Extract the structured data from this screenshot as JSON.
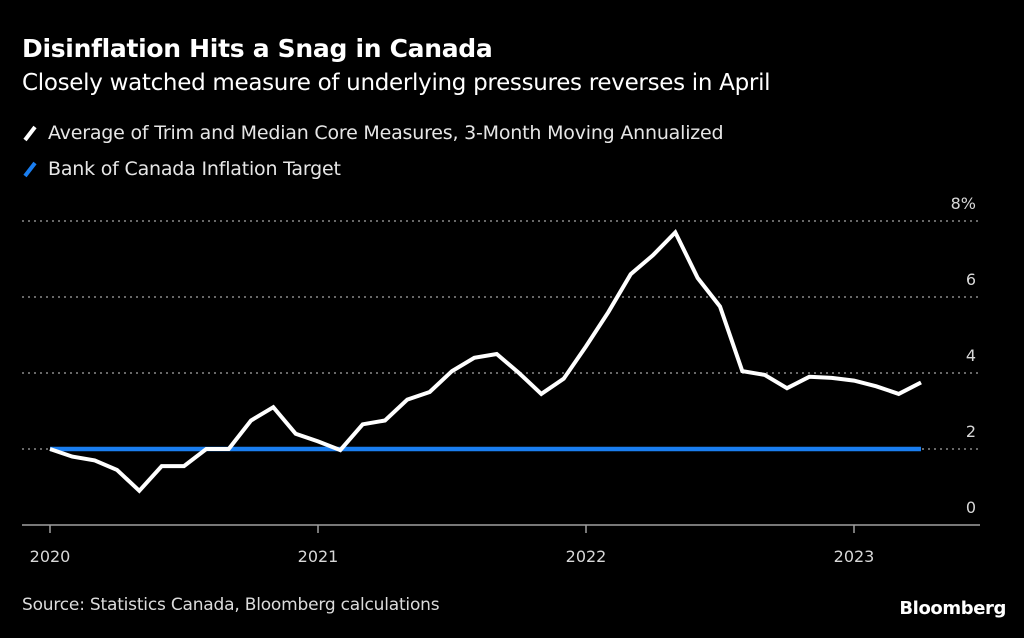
{
  "header": {
    "title": "Disinflation Hits a Snag in Canada",
    "subtitle": "Closely watched measure of underlying pressures reverses in April"
  },
  "legend": [
    {
      "label": "Average of Trim and Median Core Measures, 3-Month Moving Annualized",
      "color": "#ffffff"
    },
    {
      "label": "Bank of Canada Inflation Target",
      "color": "#1a7ef0"
    }
  ],
  "footer": {
    "source": "Source: Statistics Canada, Bloomberg calculations",
    "brand": "Bloomberg"
  },
  "chart_data": {
    "type": "line",
    "title": "Disinflation Hits a Snag in Canada",
    "subtitle": "Closely watched measure of underlying pressures reverses in April",
    "xlabel": "",
    "ylabel": "",
    "ylim": [
      0,
      8
    ],
    "yticks": [
      0,
      2,
      4,
      6,
      8
    ],
    "ytick_labels": [
      "0",
      "2",
      "4",
      "6",
      "8%"
    ],
    "xticks": [
      "2020",
      "2021",
      "2022",
      "2023"
    ],
    "x_range": [
      "2019-12",
      "2023-09"
    ],
    "grid": true,
    "legend_position": "top-left",
    "x": [
      "2020-01",
      "2020-02",
      "2020-03",
      "2020-04",
      "2020-05",
      "2020-06",
      "2020-07",
      "2020-08",
      "2020-09",
      "2020-10",
      "2020-11",
      "2020-12",
      "2021-01",
      "2021-02",
      "2021-03",
      "2021-04",
      "2021-05",
      "2021-06",
      "2021-07",
      "2021-08",
      "2021-09",
      "2021-10",
      "2021-11",
      "2021-12",
      "2022-01",
      "2022-02",
      "2022-03",
      "2022-04",
      "2022-05",
      "2022-06",
      "2022-07",
      "2022-08",
      "2022-09",
      "2022-10",
      "2022-11",
      "2022-12",
      "2023-01",
      "2023-02",
      "2023-03",
      "2023-04"
    ],
    "series": [
      {
        "name": "Average of Trim and Median Core Measures, 3-Month Moving Annualized",
        "color": "#ffffff",
        "values": [
          2.0,
          1.8,
          1.7,
          1.45,
          0.9,
          1.55,
          1.55,
          2.0,
          2.0,
          2.75,
          3.1,
          2.4,
          2.2,
          1.97,
          2.65,
          2.75,
          3.3,
          3.5,
          4.05,
          4.4,
          4.5,
          4.0,
          3.45,
          3.85,
          4.7,
          5.6,
          6.6,
          7.1,
          7.7,
          6.5,
          5.75,
          4.05,
          3.95,
          3.6,
          3.9,
          3.87,
          3.8,
          3.65,
          3.45,
          3.75
        ]
      },
      {
        "name": "Bank of Canada Inflation Target",
        "color": "#1a7ef0",
        "values": [
          2,
          2,
          2,
          2,
          2,
          2,
          2,
          2,
          2,
          2,
          2,
          2,
          2,
          2,
          2,
          2,
          2,
          2,
          2,
          2,
          2,
          2,
          2,
          2,
          2,
          2,
          2,
          2,
          2,
          2,
          2,
          2,
          2,
          2,
          2,
          2,
          2,
          2,
          2,
          2
        ]
      }
    ]
  }
}
